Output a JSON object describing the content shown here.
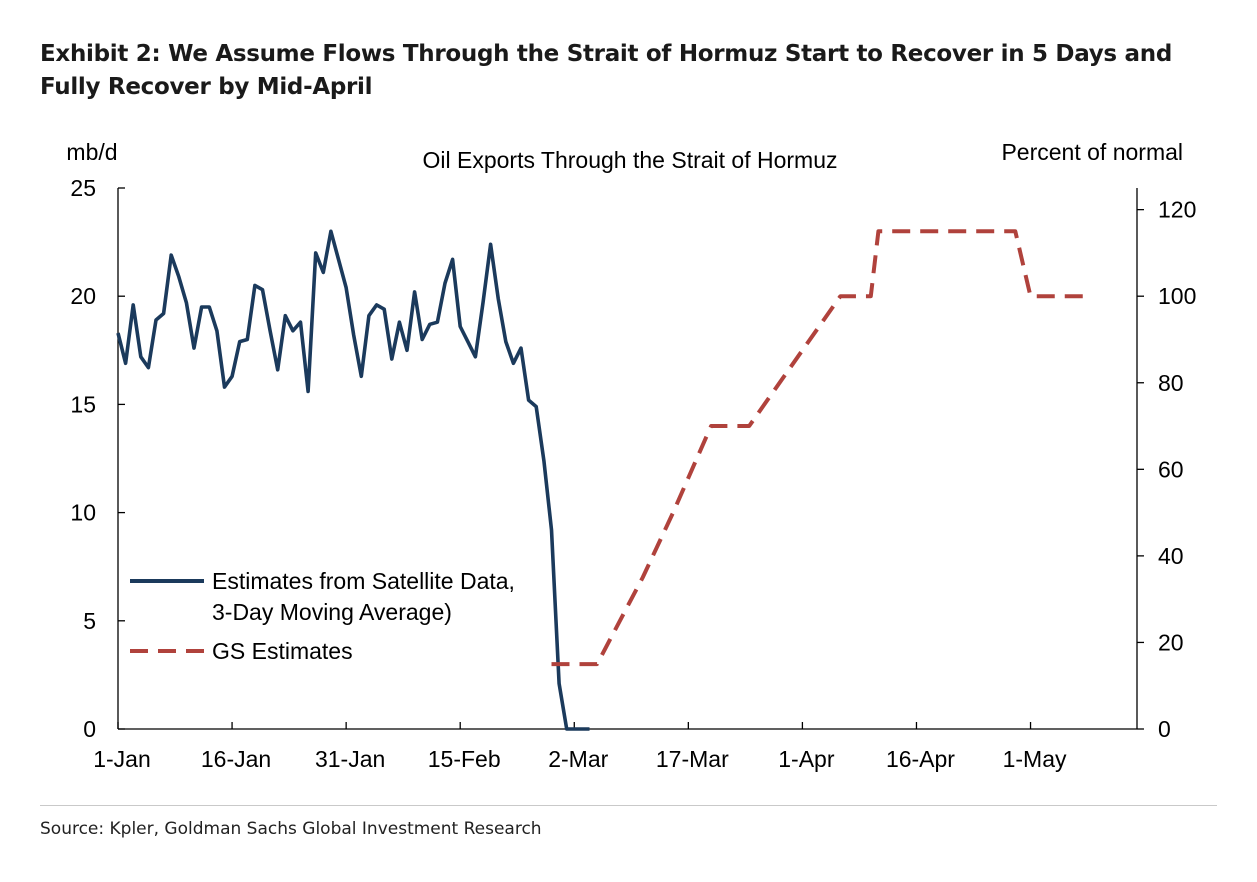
{
  "exhibit_title": "Exhibit 2: We Assume Flows Through the Strait of Hormuz Start to Recover in 5 Days and Fully Recover by Mid-April",
  "source": "Source: Kpler, Goldman Sachs Global Investment Research",
  "colors": {
    "satellite": "#1b3a5c",
    "gs": "#b0423c",
    "axis": "#000000"
  },
  "chart_data": {
    "type": "line",
    "title": "Oil Exports Through the Strait of Hormuz",
    "y_left_label": "mb/d",
    "y_right_label": "Percent of normal",
    "x_ticks": [
      "1-Jan",
      "16-Jan",
      "31-Jan",
      "15-Feb",
      "2-Mar",
      "17-Mar",
      "1-Apr",
      "16-Apr",
      "1-May"
    ],
    "x_range": [
      "2026-01-01",
      "2026-05-15"
    ],
    "y_left_range": [
      0,
      25
    ],
    "y_left_ticks": [
      0,
      5,
      10,
      15,
      20,
      25
    ],
    "y_right_range": [
      0,
      125
    ],
    "y_right_ticks": [
      0,
      20,
      40,
      60,
      80,
      100,
      120
    ],
    "legend_position": "lower-left",
    "series": [
      {
        "name": "Estimates from Satellite Data, 3-Day Moving Average)",
        "axis": "left",
        "style": "solid",
        "points": [
          [
            "2026-01-01",
            18.3
          ],
          [
            "2026-01-02",
            16.9
          ],
          [
            "2026-01-03",
            19.6
          ],
          [
            "2026-01-04",
            17.2
          ],
          [
            "2026-01-05",
            16.7
          ],
          [
            "2026-01-06",
            18.9
          ],
          [
            "2026-01-07",
            19.2
          ],
          [
            "2026-01-08",
            21.9
          ],
          [
            "2026-01-09",
            20.9
          ],
          [
            "2026-01-10",
            19.7
          ],
          [
            "2026-01-11",
            17.6
          ],
          [
            "2026-01-12",
            19.5
          ],
          [
            "2026-01-13",
            19.5
          ],
          [
            "2026-01-14",
            18.4
          ],
          [
            "2026-01-15",
            15.8
          ],
          [
            "2026-01-16",
            16.3
          ],
          [
            "2026-01-17",
            17.9
          ],
          [
            "2026-01-18",
            18.0
          ],
          [
            "2026-01-19",
            20.5
          ],
          [
            "2026-01-20",
            20.3
          ],
          [
            "2026-01-21",
            18.4
          ],
          [
            "2026-01-22",
            16.6
          ],
          [
            "2026-01-23",
            19.1
          ],
          [
            "2026-01-24",
            18.4
          ],
          [
            "2026-01-25",
            18.8
          ],
          [
            "2026-01-26",
            15.6
          ],
          [
            "2026-01-27",
            22.0
          ],
          [
            "2026-01-28",
            21.1
          ],
          [
            "2026-01-29",
            23.0
          ],
          [
            "2026-01-30",
            21.7
          ],
          [
            "2026-01-31",
            20.4
          ],
          [
            "2026-02-01",
            18.2
          ],
          [
            "2026-02-02",
            16.3
          ],
          [
            "2026-02-03",
            19.1
          ],
          [
            "2026-02-04",
            19.6
          ],
          [
            "2026-02-05",
            19.4
          ],
          [
            "2026-02-06",
            17.1
          ],
          [
            "2026-02-07",
            18.8
          ],
          [
            "2026-02-08",
            17.5
          ],
          [
            "2026-02-09",
            20.2
          ],
          [
            "2026-02-10",
            18.0
          ],
          [
            "2026-02-11",
            18.7
          ],
          [
            "2026-02-12",
            18.8
          ],
          [
            "2026-02-13",
            20.6
          ],
          [
            "2026-02-14",
            21.7
          ],
          [
            "2026-02-15",
            18.6
          ],
          [
            "2026-02-16",
            17.9
          ],
          [
            "2026-02-17",
            17.2
          ],
          [
            "2026-02-18",
            19.7
          ],
          [
            "2026-02-19",
            22.4
          ],
          [
            "2026-02-20",
            19.9
          ],
          [
            "2026-02-21",
            17.9
          ],
          [
            "2026-02-22",
            16.9
          ],
          [
            "2026-02-23",
            17.6
          ],
          [
            "2026-02-24",
            15.2
          ],
          [
            "2026-02-25",
            14.9
          ],
          [
            "2026-02-26",
            12.4
          ],
          [
            "2026-02-27",
            9.2
          ],
          [
            "2026-02-28",
            2.1
          ],
          [
            "2026-03-01",
            0.0
          ],
          [
            "2026-03-02",
            0.0
          ],
          [
            "2026-03-03",
            0.0
          ],
          [
            "2026-03-04",
            0.0
          ]
        ]
      },
      {
        "name": "GS Estimates",
        "axis": "right",
        "style": "dashed",
        "points": [
          [
            "2026-02-27",
            15
          ],
          [
            "2026-03-05",
            15
          ],
          [
            "2026-03-11",
            35
          ],
          [
            "2026-03-15",
            50
          ],
          [
            "2026-03-20",
            70
          ],
          [
            "2026-03-25",
            70
          ],
          [
            "2026-04-06",
            100
          ],
          [
            "2026-04-10",
            100
          ],
          [
            "2026-04-11",
            115
          ],
          [
            "2026-04-29",
            115
          ],
          [
            "2026-05-01",
            100
          ],
          [
            "2026-05-09",
            100
          ]
        ]
      }
    ]
  }
}
